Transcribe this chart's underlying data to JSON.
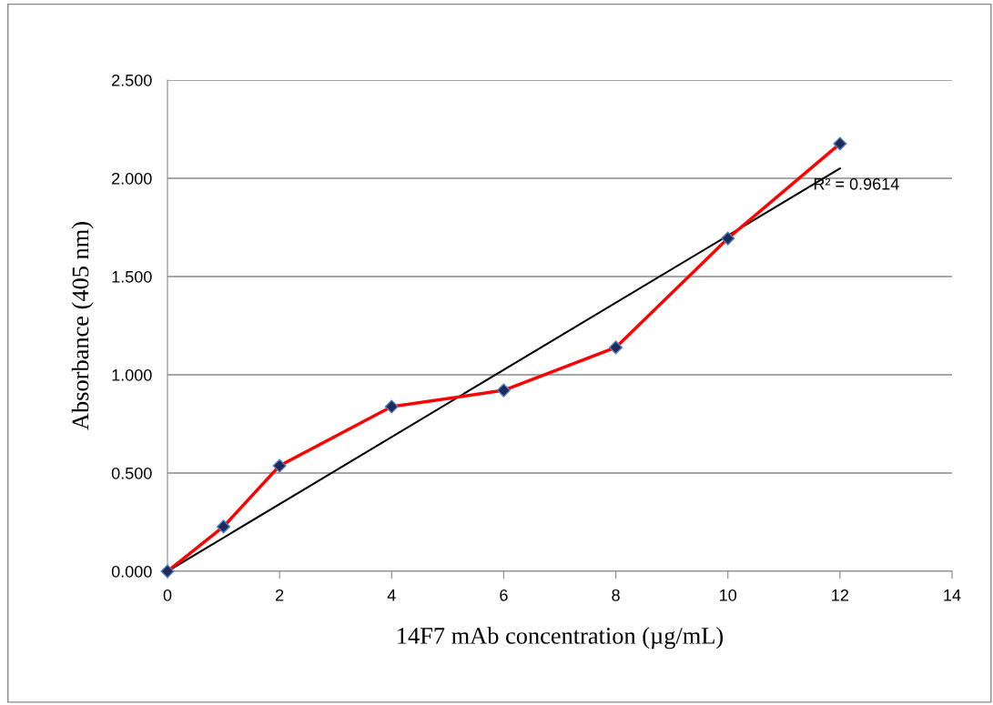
{
  "chart_data": {
    "type": "line",
    "xlabel": "14F7 mAb concentration (µg/mL)",
    "ylabel": "Absorbance (405 nm)",
    "x": [
      0,
      1,
      2,
      4,
      6,
      8,
      10,
      12
    ],
    "series": [
      {
        "color": "#ff0000",
        "values": [
          0.0,
          0.227,
          0.537,
          0.838,
          0.921,
          1.139,
          1.694,
          2.176
        ],
        "marker": "diamond"
      },
      {
        "type": "line",
        "color": "#000000",
        "x": [
          0,
          12
        ],
        "values": [
          0.0,
          2.05
        ],
        "marker": "none"
      }
    ],
    "annotations": [
      "R² = 0.9614"
    ],
    "xlim": [
      0,
      14
    ],
    "xticks": [
      0,
      2,
      4,
      6,
      8,
      10,
      12,
      14
    ],
    "ylim": [
      0,
      2.5
    ],
    "yticks": [
      {
        "value": 0,
        "label": "0.000"
      },
      {
        "value": 0.5,
        "label": "0.500"
      },
      {
        "value": 1.0,
        "label": "1.000"
      },
      {
        "value": 1.5,
        "label": "1.500"
      },
      {
        "value": 2.0,
        "label": "2.000"
      },
      {
        "value": 2.5,
        "label": "2.500"
      }
    ],
    "grid": "y",
    "legend": false,
    "line_style": "solid"
  }
}
